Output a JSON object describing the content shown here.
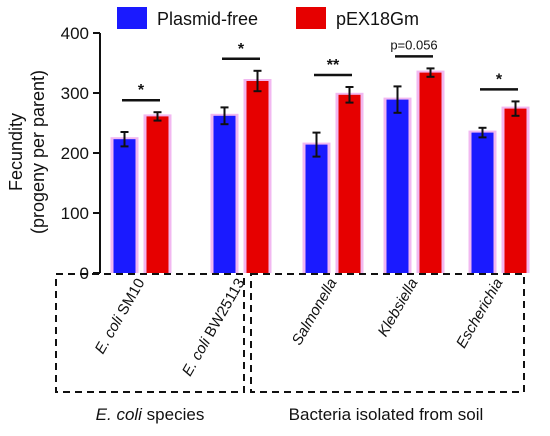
{
  "chart_data": {
    "type": "bar",
    "ylabel_line1": "Fecundity",
    "ylabel_line2": "(progeny per parent)",
    "ylim": [
      0,
      400
    ],
    "yticks": [
      "0",
      "100",
      "200",
      "300",
      "400"
    ],
    "series": [
      {
        "name": "Plasmid-free",
        "color": "#1a1aff",
        "values": [
          223,
          262,
          214,
          289,
          234
        ],
        "errors": [
          12,
          14,
          20,
          22,
          8
        ]
      },
      {
        "name": "pEX18Gm",
        "color": "#e60000",
        "values": [
          261,
          320,
          297,
          334,
          274
        ],
        "errors": [
          7,
          17,
          13,
          7,
          12
        ]
      }
    ],
    "categories": [
      {
        "italic": "E. coli",
        "rest": " SM10"
      },
      {
        "italic": "E. coli",
        "rest": " BW25113"
      },
      {
        "italic": "Salmonella",
        "rest": ""
      },
      {
        "italic": "Klebsiella",
        "rest": ""
      },
      {
        "italic": "Escherichia",
        "rest": ""
      }
    ],
    "significance": [
      "*",
      "*",
      "**",
      "p=0.056",
      "*"
    ],
    "groups": [
      {
        "italic": "E. coli",
        "rest": " species"
      },
      {
        "italic": "",
        "rest": "Bacteria isolated from soil"
      }
    ]
  }
}
